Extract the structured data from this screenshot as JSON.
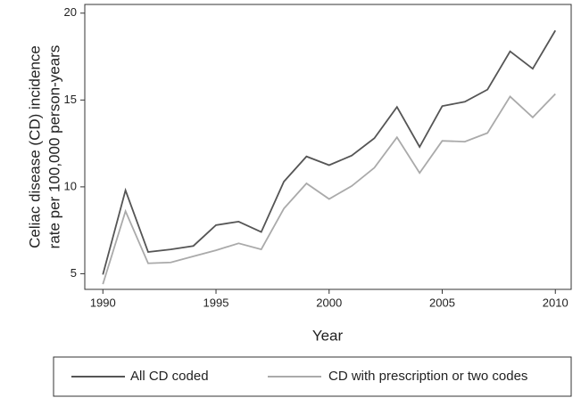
{
  "chart_data": {
    "type": "line",
    "x_label": "Year",
    "y_label": [
      "Celiac disease (CD) incidence",
      "rate per 100,000 person-years"
    ],
    "x": [
      1990,
      1991,
      1992,
      1993,
      1994,
      1995,
      1996,
      1997,
      1998,
      1999,
      2000,
      2001,
      2002,
      2003,
      2004,
      2005,
      2006,
      2007,
      2008,
      2009,
      2010
    ],
    "series": [
      {
        "name": "All CD coded",
        "color": "#555555",
        "values": [
          4.95,
          9.8,
          6.25,
          6.4,
          6.6,
          7.8,
          8.0,
          7.4,
          10.3,
          11.75,
          11.25,
          11.8,
          12.8,
          14.6,
          12.3,
          14.65,
          14.9,
          15.6,
          17.8,
          16.8,
          19.0
        ]
      },
      {
        "name": "CD with prescription or two codes",
        "color": "#aaaaaa",
        "values": [
          4.4,
          8.6,
          5.6,
          5.65,
          6.0,
          6.35,
          6.75,
          6.4,
          8.75,
          10.2,
          9.3,
          10.05,
          11.1,
          12.85,
          10.8,
          12.65,
          12.6,
          13.1,
          15.2,
          14.0,
          15.35
        ]
      }
    ],
    "xlim": [
      1989.2,
      2010.7
    ],
    "xticks": [
      1990,
      1995,
      2000,
      2005,
      2010
    ],
    "ylim": [
      4.1,
      20.5
    ],
    "yticks": [
      5,
      10,
      15,
      20
    ],
    "legend": "bottom"
  }
}
